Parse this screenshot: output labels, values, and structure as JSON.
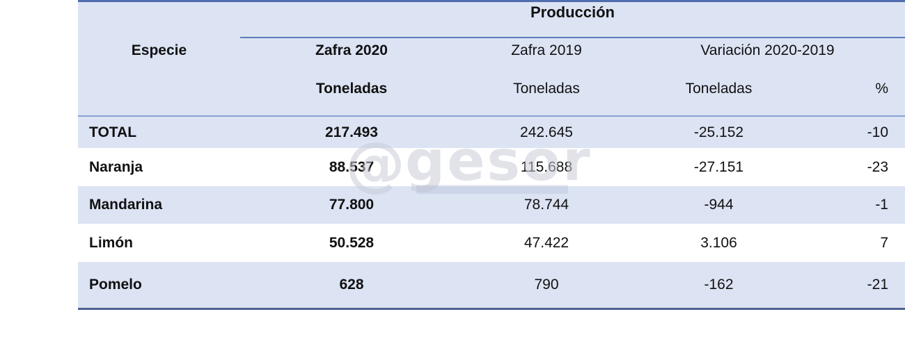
{
  "chart_data": {
    "type": "table",
    "title": "Producción",
    "row_header": "Especie",
    "column_group": "Producción",
    "columns": [
      "Especie",
      "Zafra 2020 Toneladas",
      "Zafra 2019 Toneladas",
      "Variación 2020-2019 Toneladas",
      "Variación 2020-2019 %"
    ],
    "rows": [
      [
        "TOTAL",
        "217.493",
        "242.645",
        "-25.152",
        "-10"
      ],
      [
        "Naranja",
        "88.537",
        "115.688",
        "-27.151",
        "-23"
      ],
      [
        "Mandarina",
        "77.800",
        "78.744",
        "-944",
        "-1"
      ],
      [
        "Limón",
        "50.528",
        "47.422",
        "3.106",
        "7"
      ],
      [
        "Pomelo",
        "628",
        "790",
        "-162",
        "-21"
      ]
    ]
  },
  "table": {
    "group_header": "Producción",
    "especie_header": "Especie",
    "zafra2020": {
      "label": "Zafra 2020",
      "unit": "Toneladas"
    },
    "zafra2019": {
      "label": "Zafra 2019",
      "unit": "Toneladas"
    },
    "variacion": {
      "label": "Variación 2020-2019",
      "unit_toneladas": "Toneladas",
      "unit_pct": "%"
    }
  },
  "watermark": {
    "symbol": "@",
    "text": "gesor"
  },
  "colors": {
    "band": "#dce3f3",
    "top_border": "#4f6cae",
    "thin_rule": "#8aa2cd",
    "produccion_rule": "#5d7cba",
    "bottom_border": "#50618f",
    "text": "#111111",
    "watermark": "#c9cdd8"
  }
}
